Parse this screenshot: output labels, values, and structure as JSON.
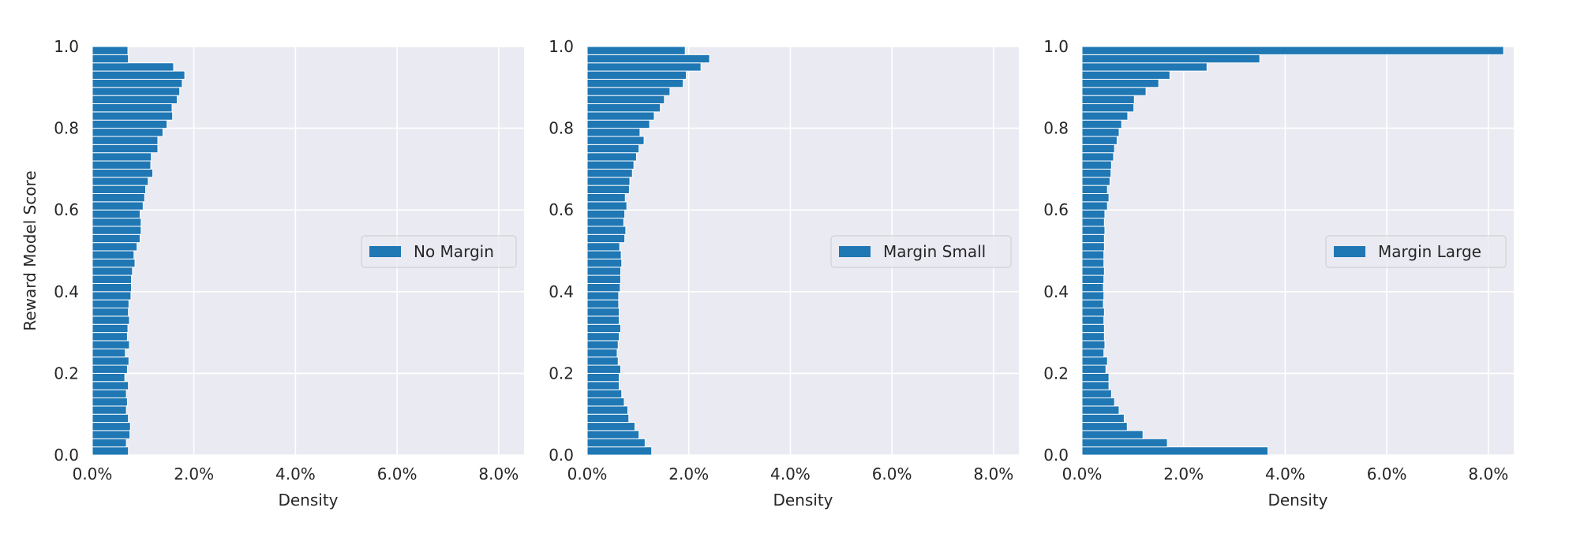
{
  "figure": {
    "ylabel": "Reward Model Score"
  },
  "chart_data": [
    {
      "type": "bar",
      "orientation": "horizontal",
      "title": "",
      "xlabel": "Density",
      "ylabel": "Reward Model Score",
      "xlim": [
        0,
        8.5
      ],
      "ylim": [
        0,
        1
      ],
      "x_unit": "%",
      "xticks": [
        "0.0%",
        "2.0%",
        "4.0%",
        "6.0%",
        "8.0%"
      ],
      "yticks": [
        "0.0",
        "0.2",
        "0.4",
        "0.6",
        "0.8",
        "1.0"
      ],
      "grid": true,
      "legend": "center right",
      "bin_width": 0.02,
      "series": [
        {
          "name": "No Margin",
          "color": "#1f77b4",
          "values": [
            0.71,
            0.67,
            0.74,
            0.75,
            0.71,
            0.67,
            0.69,
            0.67,
            0.71,
            0.64,
            0.69,
            0.72,
            0.65,
            0.73,
            0.69,
            0.7,
            0.73,
            0.71,
            0.72,
            0.76,
            0.77,
            0.77,
            0.79,
            0.84,
            0.82,
            0.88,
            0.94,
            0.96,
            0.96,
            0.94,
            1.0,
            1.03,
            1.05,
            1.1,
            1.19,
            1.15,
            1.16,
            1.29,
            1.29,
            1.39,
            1.47,
            1.58,
            1.57,
            1.67,
            1.72,
            1.77,
            1.82,
            1.6,
            0.71,
            0.7
          ]
        }
      ]
    },
    {
      "type": "bar",
      "orientation": "horizontal",
      "title": "",
      "xlabel": "Density",
      "ylabel": "",
      "xlim": [
        0,
        8.5
      ],
      "ylim": [
        0,
        1
      ],
      "x_unit": "%",
      "xticks": [
        "0.0%",
        "2.0%",
        "4.0%",
        "6.0%",
        "8.0%"
      ],
      "yticks": [
        "0.0",
        "0.2",
        "0.4",
        "0.6",
        "0.8",
        "1.0"
      ],
      "grid": true,
      "legend": "center right",
      "bin_width": 0.02,
      "series": [
        {
          "name": "Margin Small",
          "color": "#1f77b4",
          "values": [
            1.27,
            1.14,
            1.02,
            0.94,
            0.82,
            0.8,
            0.73,
            0.68,
            0.63,
            0.63,
            0.66,
            0.61,
            0.59,
            0.61,
            0.63,
            0.66,
            0.63,
            0.63,
            0.62,
            0.62,
            0.65,
            0.66,
            0.66,
            0.68,
            0.67,
            0.64,
            0.74,
            0.76,
            0.72,
            0.74,
            0.78,
            0.75,
            0.83,
            0.84,
            0.89,
            0.92,
            0.97,
            1.02,
            1.12,
            1.04,
            1.23,
            1.32,
            1.44,
            1.52,
            1.63,
            1.89,
            1.95,
            2.24,
            2.41,
            1.93
          ]
        }
      ]
    },
    {
      "type": "bar",
      "orientation": "horizontal",
      "title": "",
      "xlabel": "Density",
      "ylabel": "",
      "xlim": [
        0,
        8.5
      ],
      "ylim": [
        0,
        1
      ],
      "x_unit": "%",
      "xticks": [
        "0.0%",
        "2.0%",
        "4.0%",
        "6.0%",
        "8.0%"
      ],
      "yticks": [
        "0.0",
        "0.2",
        "0.4",
        "0.6",
        "0.8",
        "1.0"
      ],
      "grid": true,
      "legend": "center right",
      "bin_width": 0.02,
      "series": [
        {
          "name": "Margin Large",
          "color": "#1f77b4",
          "values": [
            3.66,
            1.68,
            1.2,
            0.89,
            0.83,
            0.73,
            0.64,
            0.58,
            0.53,
            0.53,
            0.47,
            0.5,
            0.43,
            0.45,
            0.44,
            0.44,
            0.43,
            0.44,
            0.42,
            0.43,
            0.42,
            0.43,
            0.44,
            0.43,
            0.43,
            0.44,
            0.44,
            0.45,
            0.44,
            0.45,
            0.5,
            0.53,
            0.5,
            0.55,
            0.57,
            0.58,
            0.62,
            0.64,
            0.69,
            0.73,
            0.78,
            0.9,
            1.02,
            1.03,
            1.26,
            1.51,
            1.73,
            2.46,
            3.5,
            8.3
          ]
        }
      ]
    }
  ]
}
